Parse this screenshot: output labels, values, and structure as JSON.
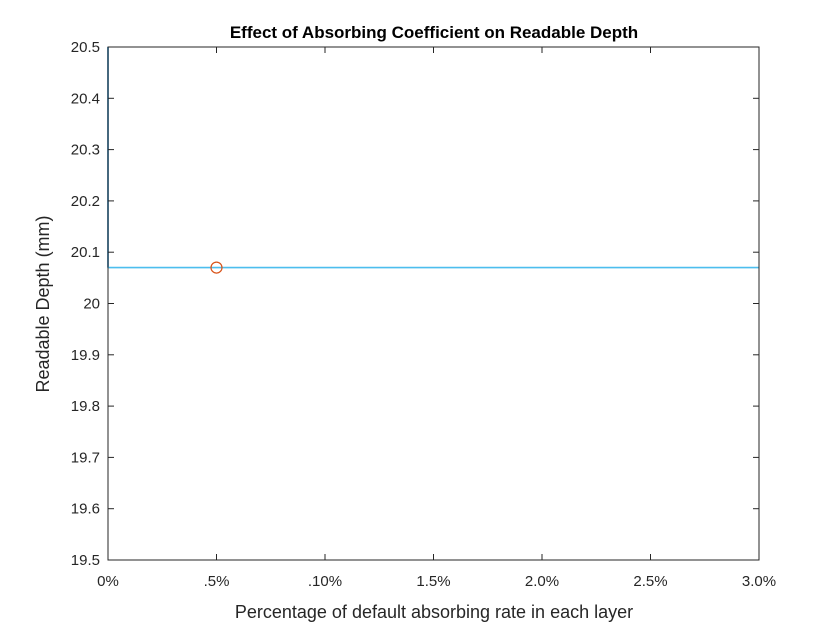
{
  "chart_data": {
    "type": "line",
    "title": "Effect of Absorbing Coefficient on Readable Depth",
    "xlabel": "Percentage of default absorbing rate in each layer",
    "ylabel": "Readable Depth (mm)",
    "x_tick_labels": [
      "0%",
      ".5%",
      ".10%",
      "1.5%",
      "2.0%",
      "2.5%",
      "3.0%"
    ],
    "y_tick_labels": [
      "19.5",
      "19.6",
      "19.7",
      "19.8",
      "19.9",
      "20",
      "20.1",
      "20.2",
      "20.3",
      "20.4",
      "20.5"
    ],
    "xlim": [
      0,
      3.0
    ],
    "ylim": [
      19.5,
      20.5
    ],
    "grid": false,
    "series": [
      {
        "kind": "line",
        "color": "#0072BD",
        "points": [
          [
            0,
            20.07
          ],
          [
            0,
            20.5
          ]
        ]
      },
      {
        "kind": "line",
        "color": "#4DBEEE",
        "points": [
          [
            0,
            20.07
          ],
          [
            3.0,
            20.07
          ]
        ]
      },
      {
        "kind": "marker",
        "marker": "circle",
        "color": "#D95319",
        "points": [
          [
            0.5,
            20.07
          ]
        ]
      }
    ]
  }
}
